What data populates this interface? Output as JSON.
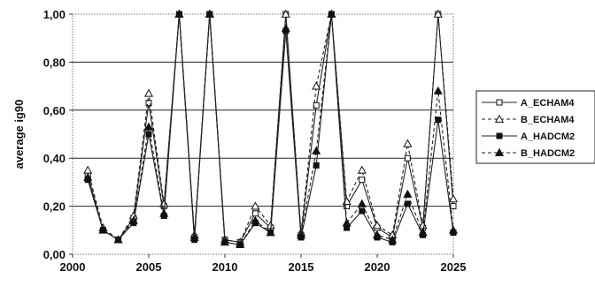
{
  "chart_data": {
    "type": "line",
    "title": "",
    "xlabel": "",
    "ylabel": "average ig90",
    "xlim": [
      2000,
      2025
    ],
    "ylim": [
      0,
      1
    ],
    "x_ticks": [
      "2000",
      "2005",
      "2010",
      "2015",
      "2020",
      "2025"
    ],
    "y_ticks": [
      "0,00",
      "0,20",
      "0,40",
      "0,60",
      "0,80",
      "1,00"
    ],
    "grid": "horizontal",
    "legend": "right",
    "x": [
      2001,
      2002,
      2003,
      2004,
      2005,
      2006,
      2007,
      2008,
      2009,
      2010,
      2011,
      2012,
      2013,
      2014,
      2015,
      2016,
      2017,
      2018,
      2019,
      2020,
      2021,
      2022,
      2023,
      2024,
      2025
    ],
    "series": [
      {
        "name": "A_ECHAM4",
        "marker": "open-square",
        "dash": "solid",
        "values": [
          0.33,
          0.1,
          0.06,
          0.15,
          0.63,
          0.2,
          1.0,
          0.07,
          1.0,
          0.06,
          0.05,
          0.17,
          0.11,
          1.0,
          0.08,
          0.62,
          1.0,
          0.2,
          0.31,
          0.11,
          0.07,
          0.4,
          0.11,
          1.0,
          0.2
        ]
      },
      {
        "name": "B_ECHAM4",
        "marker": "open-triangle",
        "dash": "dashed",
        "values": [
          0.35,
          0.11,
          0.06,
          0.16,
          0.67,
          0.21,
          1.0,
          0.08,
          1.0,
          0.06,
          0.05,
          0.2,
          0.12,
          1.0,
          0.09,
          0.7,
          1.0,
          0.22,
          0.35,
          0.12,
          0.08,
          0.46,
          0.12,
          1.0,
          0.23
        ]
      },
      {
        "name": "A_HADCM2",
        "marker": "filled-square",
        "dash": "solid",
        "values": [
          0.31,
          0.1,
          0.06,
          0.13,
          0.5,
          0.16,
          1.0,
          0.06,
          1.0,
          0.05,
          0.04,
          0.13,
          0.09,
          0.93,
          0.07,
          0.37,
          1.0,
          0.11,
          0.18,
          0.07,
          0.05,
          0.21,
          0.08,
          0.56,
          0.09
        ]
      },
      {
        "name": "B_HADCM2",
        "marker": "filled-triangle",
        "dash": "dashed",
        "values": [
          0.32,
          0.1,
          0.06,
          0.14,
          0.53,
          0.17,
          1.0,
          0.07,
          1.0,
          0.05,
          0.04,
          0.14,
          0.09,
          0.94,
          0.08,
          0.43,
          1.0,
          0.13,
          0.21,
          0.08,
          0.06,
          0.25,
          0.09,
          0.68,
          0.1
        ]
      }
    ]
  }
}
